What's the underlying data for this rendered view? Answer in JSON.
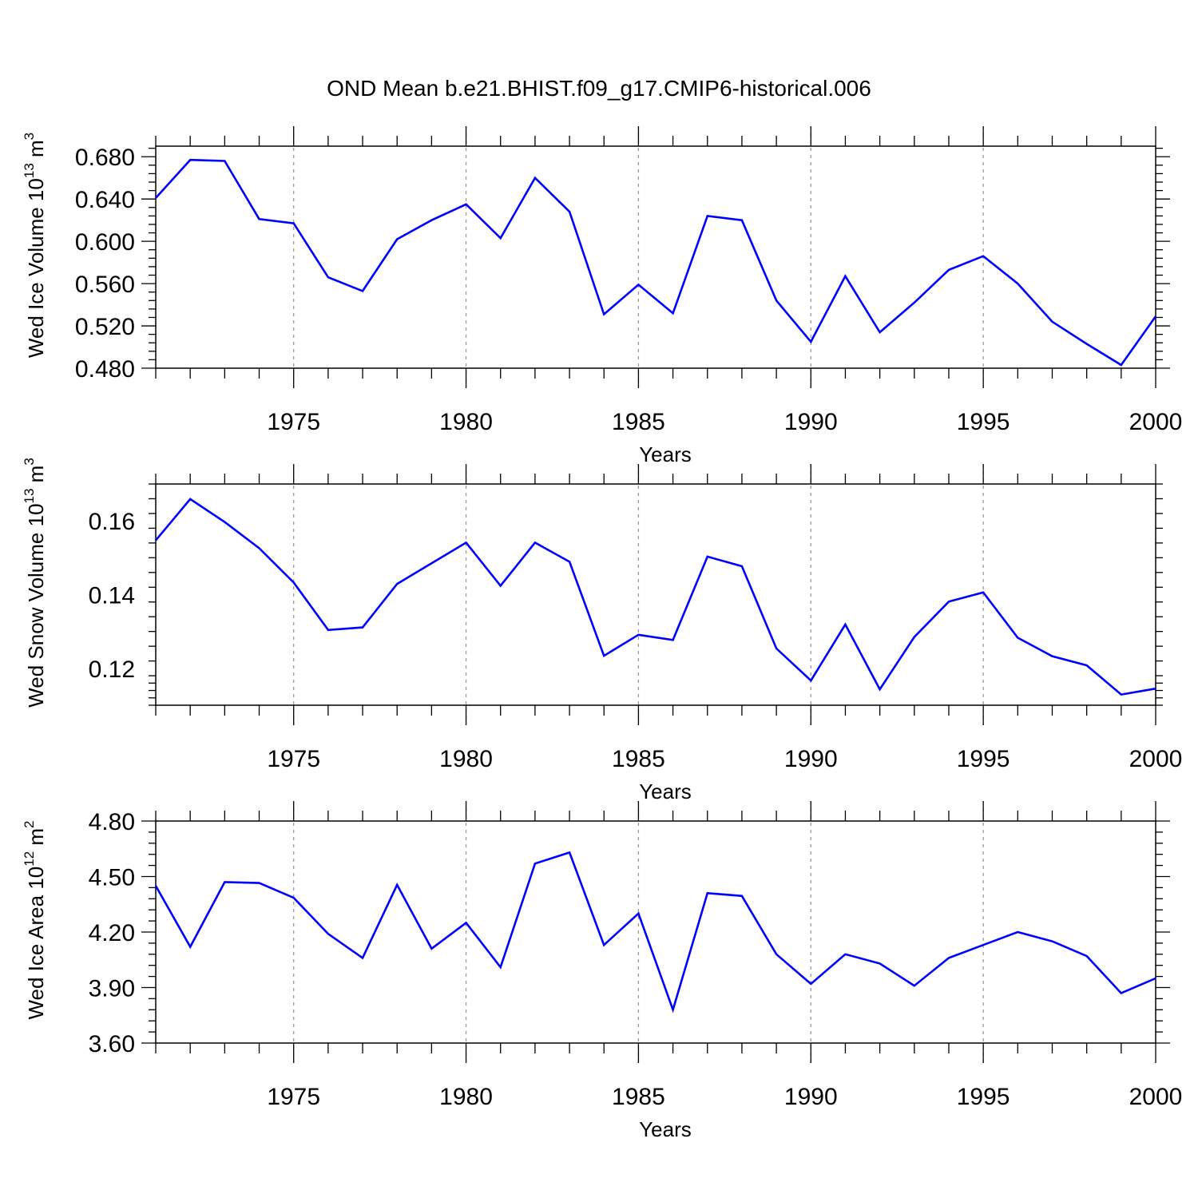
{
  "figure": {
    "title": "OND Mean b.e21.BHIST.f09_g17.CMIP6-historical.006"
  },
  "colors": {
    "series": "#0000ff",
    "axis": "#000000",
    "grid": "#9a9a9a"
  },
  "chart_data": [
    {
      "type": "line",
      "ylabel": "Wed Ice Volume 10",
      "ylabel_exp": "13",
      "ylabel_unit": "m",
      "ylabel_unit_exp": "3",
      "xlabel": "Years",
      "xlim": [
        1971,
        2000
      ],
      "ylim": [
        0.48,
        0.69
      ],
      "yticks": [
        0.48,
        0.52,
        0.56,
        0.6,
        0.64,
        0.68
      ],
      "ytick_labels": [
        "0.480",
        "0.520",
        "0.560",
        "0.600",
        "0.640",
        "0.680"
      ],
      "xticks": [
        1975,
        1980,
        1985,
        1990,
        1995,
        2000
      ],
      "xtick_labels": [
        "1975",
        "1980",
        "1985",
        "1990",
        "1995",
        "2000"
      ],
      "grid_x": [
        1975,
        1980,
        1985,
        1990,
        1995
      ],
      "x": [
        1971,
        1972,
        1973,
        1974,
        1975,
        1976,
        1977,
        1978,
        1979,
        1980,
        1981,
        1982,
        1983,
        1984,
        1985,
        1986,
        1987,
        1988,
        1989,
        1990,
        1991,
        1992,
        1993,
        1994,
        1995,
        1996,
        1997,
        1998,
        1999,
        2000
      ],
      "values": [
        0.641,
        0.677,
        0.676,
        0.621,
        0.617,
        0.566,
        0.553,
        0.602,
        0.62,
        0.635,
        0.603,
        0.66,
        0.628,
        0.531,
        0.559,
        0.532,
        0.624,
        0.62,
        0.544,
        0.505,
        0.567,
        0.514,
        0.542,
        0.573,
        0.586,
        0.56,
        0.524,
        0.503,
        0.483,
        0.529
      ]
    },
    {
      "type": "line",
      "ylabel": "Wed Snow Volume 10",
      "ylabel_exp": "13",
      "ylabel_unit": "m",
      "ylabel_unit_exp": "3",
      "xlabel": "Years",
      "xlim": [
        1971,
        2000
      ],
      "ylim": [
        0.11,
        0.17
      ],
      "yticks": [
        0.12,
        0.14,
        0.16
      ],
      "ytick_labels": [
        "0.12",
        "0.14",
        "0.16"
      ],
      "xticks": [
        1975,
        1980,
        1985,
        1990,
        1995,
        2000
      ],
      "xtick_labels": [
        "1975",
        "1980",
        "1985",
        "1990",
        "1995",
        "2000"
      ],
      "grid_x": [
        1975,
        1980,
        1985,
        1990,
        1995
      ],
      "x": [
        1971,
        1972,
        1973,
        1974,
        1975,
        1976,
        1977,
        1978,
        1979,
        1980,
        1981,
        1982,
        1983,
        1984,
        1985,
        1986,
        1987,
        1988,
        1989,
        1990,
        1991,
        1992,
        1993,
        1994,
        1995,
        1996,
        1997,
        1998,
        1999,
        2000
      ],
      "values": [
        0.1547,
        0.1659,
        0.1597,
        0.1526,
        0.1433,
        0.1304,
        0.1311,
        0.1429,
        0.1485,
        0.1541,
        0.1424,
        0.1541,
        0.1489,
        0.1234,
        0.1291,
        0.1277,
        0.1503,
        0.1477,
        0.1254,
        0.1167,
        0.1319,
        0.1143,
        0.1285,
        0.1381,
        0.1406,
        0.1283,
        0.1233,
        0.1208,
        0.1129,
        0.1145
      ]
    },
    {
      "type": "line",
      "ylabel": "Wed Ice Area 10",
      "ylabel_exp": "12",
      "ylabel_unit": "m",
      "ylabel_unit_exp": "2",
      "xlabel": "Years",
      "xlim": [
        1971,
        2000
      ],
      "ylim": [
        3.6,
        4.8
      ],
      "yticks": [
        3.6,
        3.9,
        4.2,
        4.5,
        4.8
      ],
      "ytick_labels": [
        "3.60",
        "3.90",
        "4.20",
        "4.50",
        "4.80"
      ],
      "xticks": [
        1975,
        1980,
        1985,
        1990,
        1995,
        2000
      ],
      "xtick_labels": [
        "1975",
        "1980",
        "1985",
        "1990",
        "1995",
        "2000"
      ],
      "grid_x": [
        1975,
        1980,
        1985,
        1990,
        1995
      ],
      "x": [
        1971,
        1972,
        1973,
        1974,
        1975,
        1976,
        1977,
        1978,
        1979,
        1980,
        1981,
        1982,
        1983,
        1984,
        1985,
        1986,
        1987,
        1988,
        1989,
        1990,
        1991,
        1992,
        1993,
        1994,
        1995,
        1996,
        1997,
        1998,
        1999,
        2000
      ],
      "values": [
        4.45,
        4.12,
        4.47,
        4.465,
        4.385,
        4.19,
        4.06,
        4.455,
        4.11,
        4.25,
        4.01,
        4.57,
        4.63,
        4.13,
        4.3,
        3.78,
        4.41,
        4.395,
        4.08,
        3.92,
        4.08,
        4.03,
        3.91,
        4.06,
        4.13,
        4.2,
        4.15,
        4.07,
        3.87,
        3.95
      ]
    }
  ]
}
